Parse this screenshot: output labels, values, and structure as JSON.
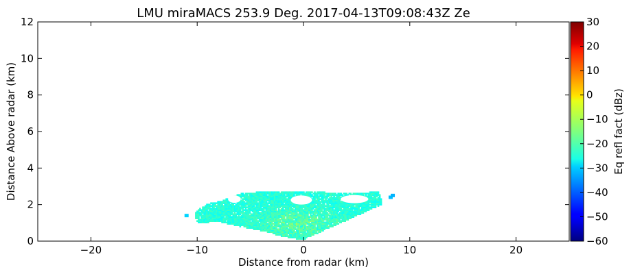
{
  "chart_data": {
    "type": "heatmap",
    "title": "LMU miraMACS 253.9 Deg. 2017-04-13T09:08:43Z  Ze",
    "xlabel": "Distance from radar (km)",
    "ylabel": "Distance Above radar  (km)",
    "xlim": [
      -25,
      25
    ],
    "ylim": [
      0,
      12
    ],
    "x_ticks": [
      -20,
      -10,
      0,
      10,
      20
    ],
    "x_tick_labels": [
      "−20",
      "−10",
      "0",
      "10",
      "20"
    ],
    "y_ticks": [
      0,
      2,
      4,
      6,
      8,
      10,
      12
    ],
    "y_tick_labels": [
      "0",
      "2",
      "4",
      "6",
      "8",
      "10",
      "12"
    ],
    "grid": false,
    "colorbar": {
      "label": "Eq refl fact (dBz)",
      "range": [
        -60,
        30
      ],
      "colormap": "jet",
      "ticks": [
        30,
        20,
        10,
        0,
        -10,
        -20,
        -30,
        -40,
        -50,
        -60
      ],
      "tick_labels": [
        "30",
        "20",
        "10",
        "0",
        "−10",
        "−20",
        "−30",
        "−40",
        "−50",
        "−60"
      ]
    },
    "echo_region": {
      "approx_x_extent_km": [
        -11.3,
        8.6
      ],
      "approx_y_extent_km": [
        0.0,
        2.7
      ],
      "dominant_dbz_range": [
        -32,
        -15
      ],
      "core_dbz_max": -12,
      "outline_km": [
        [
          0.0,
          0.05
        ],
        [
          7.3,
          1.95
        ],
        [
          7.2,
          2.4
        ],
        [
          6.9,
          2.7
        ],
        [
          5.0,
          2.55
        ],
        [
          3.0,
          2.6
        ],
        [
          1.0,
          2.65
        ],
        [
          -1.0,
          2.7
        ],
        [
          -4.0,
          2.65
        ],
        [
          -6.0,
          2.55
        ],
        [
          -7.8,
          2.15
        ],
        [
          -9.0,
          2.0
        ],
        [
          -10.0,
          1.7
        ],
        [
          -10.3,
          1.45
        ],
        [
          -10.2,
          1.15
        ],
        [
          -10.0,
          0.95
        ],
        [
          -8.0,
          1.0
        ],
        [
          -6.5,
          0.8
        ],
        [
          -4.0,
          0.5
        ],
        [
          -2.0,
          0.2
        ],
        [
          -0.5,
          0.05
        ]
      ],
      "small_cells_km": [
        {
          "x": -11.0,
          "y": 1.4,
          "dbz": -30
        },
        {
          "x": 8.2,
          "y": 2.4,
          "dbz": -32
        },
        {
          "x": 8.4,
          "y": 2.5,
          "dbz": -33
        }
      ]
    }
  }
}
